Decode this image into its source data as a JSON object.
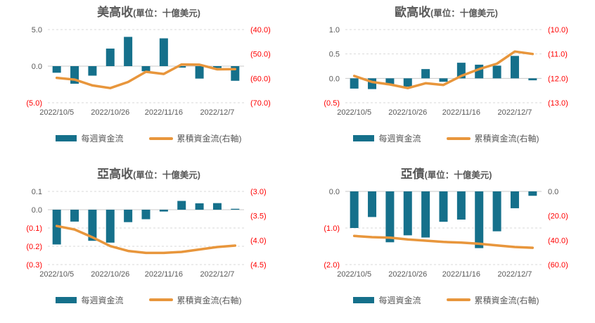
{
  "colors": {
    "bar": "#15708B",
    "line": "#E8963C",
    "grid_dashed": "#D9D9D9",
    "zero_line": "#C9C9C9",
    "axis_text": "#595959",
    "negative_text": "#FF0000",
    "title_text": "#595959",
    "legend_text": "#595959",
    "background": "#FFFFFF"
  },
  "legend": {
    "bar_label": "每週資金流",
    "line_label": "累積資金流(右軸)"
  },
  "chart_data": [
    {
      "type": "bar+line",
      "title": "美高收",
      "unit_label": "(單位：十億美元)",
      "n_points": 11,
      "x_tick_labels": [
        "2022/10/5",
        "2022/10/26",
        "2022/11/16",
        "2022/12/7"
      ],
      "x_tick_positions": [
        0,
        3,
        6,
        9
      ],
      "grid": "horizontal-dashed",
      "legend_position": "bottom",
      "left_axis": {
        "range": [
          -5,
          5
        ],
        "ticks": [
          {
            "label": "5.0",
            "value": 5
          },
          {
            "label": "0.0",
            "value": 0
          },
          {
            "label": "(5.0)",
            "value": -5
          }
        ]
      },
      "right_axis": {
        "range": [
          -70,
          -40
        ],
        "ticks": [
          {
            "label": "(40.0)",
            "value": -40
          },
          {
            "label": "(50.0)",
            "value": -50
          },
          {
            "label": "(60.0)",
            "value": -60
          },
          {
            "label": "(70.0)",
            "value": -70
          }
        ]
      },
      "series": [
        {
          "name": "每週資金流",
          "kind": "bar",
          "axis": "left",
          "values": [
            -0.9,
            -2.4,
            -1.3,
            2.4,
            4.0,
            -0.7,
            3.8,
            -0.2,
            -1.7,
            -0.25,
            -2.0
          ]
        },
        {
          "name": "累積資金流(右軸)",
          "kind": "line",
          "axis": "right",
          "values": [
            -59.8,
            -60.5,
            -62.9,
            -64.0,
            -61.5,
            -57.3,
            -58.2,
            -54.3,
            -54.4,
            -56.3,
            -56.2
          ]
        }
      ]
    },
    {
      "type": "bar+line",
      "title": "歐高收",
      "unit_label": "(單位：十億美元)",
      "n_points": 11,
      "x_tick_labels": [
        "2022/10/5",
        "2022/10/26",
        "2022/11/16",
        "2022/12/7"
      ],
      "x_tick_positions": [
        0,
        3,
        6,
        9
      ],
      "grid": "horizontal-dashed",
      "legend_position": "bottom",
      "left_axis": {
        "range": [
          -0.5,
          1.0
        ],
        "ticks": [
          {
            "label": "1.0",
            "value": 1.0
          },
          {
            "label": "0.5",
            "value": 0.5
          },
          {
            "label": "0.0",
            "value": 0
          },
          {
            "label": "(0.5)",
            "value": -0.5
          }
        ]
      },
      "right_axis": {
        "range": [
          -13,
          -10
        ],
        "ticks": [
          {
            "label": "(10.0)",
            "value": -10
          },
          {
            "label": "(11.0)",
            "value": -11
          },
          {
            "label": "(12.0)",
            "value": -12
          },
          {
            "label": "(13.0)",
            "value": -13
          }
        ]
      },
      "series": [
        {
          "name": "每週資金流",
          "kind": "bar",
          "axis": "left",
          "values": [
            -0.21,
            -0.22,
            -0.14,
            -0.17,
            0.19,
            -0.07,
            0.32,
            0.28,
            0.26,
            0.46,
            -0.04
          ]
        },
        {
          "name": "累積資金流(右軸)",
          "kind": "line",
          "axis": "right",
          "values": [
            -11.9,
            -12.15,
            -12.25,
            -12.4,
            -12.2,
            -12.27,
            -11.9,
            -11.62,
            -11.4,
            -10.9,
            -11.0
          ]
        }
      ]
    },
    {
      "type": "bar+line",
      "title": "亞高收",
      "unit_label": "(單位：十億美元)",
      "n_points": 11,
      "x_tick_labels": [
        "2022/10/5",
        "2022/10/26",
        "2022/11/16",
        "2022/12/7"
      ],
      "x_tick_positions": [
        0,
        3,
        6,
        9
      ],
      "grid": "horizontal-dashed",
      "legend_position": "bottom",
      "left_axis": {
        "range": [
          -0.3,
          0.1
        ],
        "ticks": [
          {
            "label": "0.1",
            "value": 0.1
          },
          {
            "label": "0.0",
            "value": 0
          },
          {
            "label": "(0.1)",
            "value": -0.1
          },
          {
            "label": "(0.2)",
            "value": -0.2
          },
          {
            "label": "(0.3)",
            "value": -0.3
          }
        ]
      },
      "right_axis": {
        "range": [
          -4.5,
          -3.0
        ],
        "ticks": [
          {
            "label": "(3.0)",
            "value": -3.0
          },
          {
            "label": "(3.5)",
            "value": -3.5
          },
          {
            "label": "(4.0)",
            "value": -4.0
          },
          {
            "label": "(4.5)",
            "value": -4.5
          }
        ]
      },
      "series": [
        {
          "name": "每週資金流",
          "kind": "bar",
          "axis": "left",
          "values": [
            -0.19,
            -0.065,
            -0.17,
            -0.18,
            -0.068,
            -0.052,
            -0.01,
            0.048,
            0.035,
            0.036,
            0.005
          ]
        },
        {
          "name": "累積資金流(右軸)",
          "kind": "line",
          "axis": "right",
          "values": [
            -3.71,
            -3.78,
            -3.94,
            -4.12,
            -4.22,
            -4.26,
            -4.26,
            -4.24,
            -4.19,
            -4.14,
            -4.11
          ]
        }
      ]
    },
    {
      "type": "bar+line",
      "title": "亞債",
      "unit_label": "(單位：十億美元)",
      "n_points": 11,
      "x_tick_labels": [
        "2022/10/5",
        "2022/10/26",
        "2022/11/16",
        "2022/12/7"
      ],
      "x_tick_positions": [
        0,
        3,
        6,
        9
      ],
      "grid": "horizontal-dashed",
      "legend_position": "bottom",
      "left_axis": {
        "range": [
          -2.0,
          0.0
        ],
        "ticks": [
          {
            "label": "0.0",
            "value": 0
          },
          {
            "label": "(1.0)",
            "value": -1.0
          },
          {
            "label": "(2.0)",
            "value": -2.0
          }
        ]
      },
      "right_axis": {
        "range": [
          -60,
          0
        ],
        "ticks": [
          {
            "label": "0.0",
            "value": 0
          },
          {
            "label": "(20.0)",
            "value": -20
          },
          {
            "label": "(40.0)",
            "value": -40
          },
          {
            "label": "(60.0)",
            "value": -60
          }
        ]
      },
      "series": [
        {
          "name": "每週資金流",
          "kind": "bar",
          "axis": "left",
          "values": [
            -1.0,
            -0.7,
            -1.39,
            -1.2,
            -1.26,
            -0.83,
            -0.77,
            -1.55,
            -1.09,
            -0.46,
            -0.12
          ]
        },
        {
          "name": "累積資金流(右軸)",
          "kind": "line",
          "axis": "right",
          "values": [
            -36.5,
            -37.5,
            -37.9,
            -39.4,
            -40.4,
            -41.4,
            -42.0,
            -42.9,
            -44.3,
            -45.6,
            -46.2
          ]
        }
      ]
    }
  ]
}
